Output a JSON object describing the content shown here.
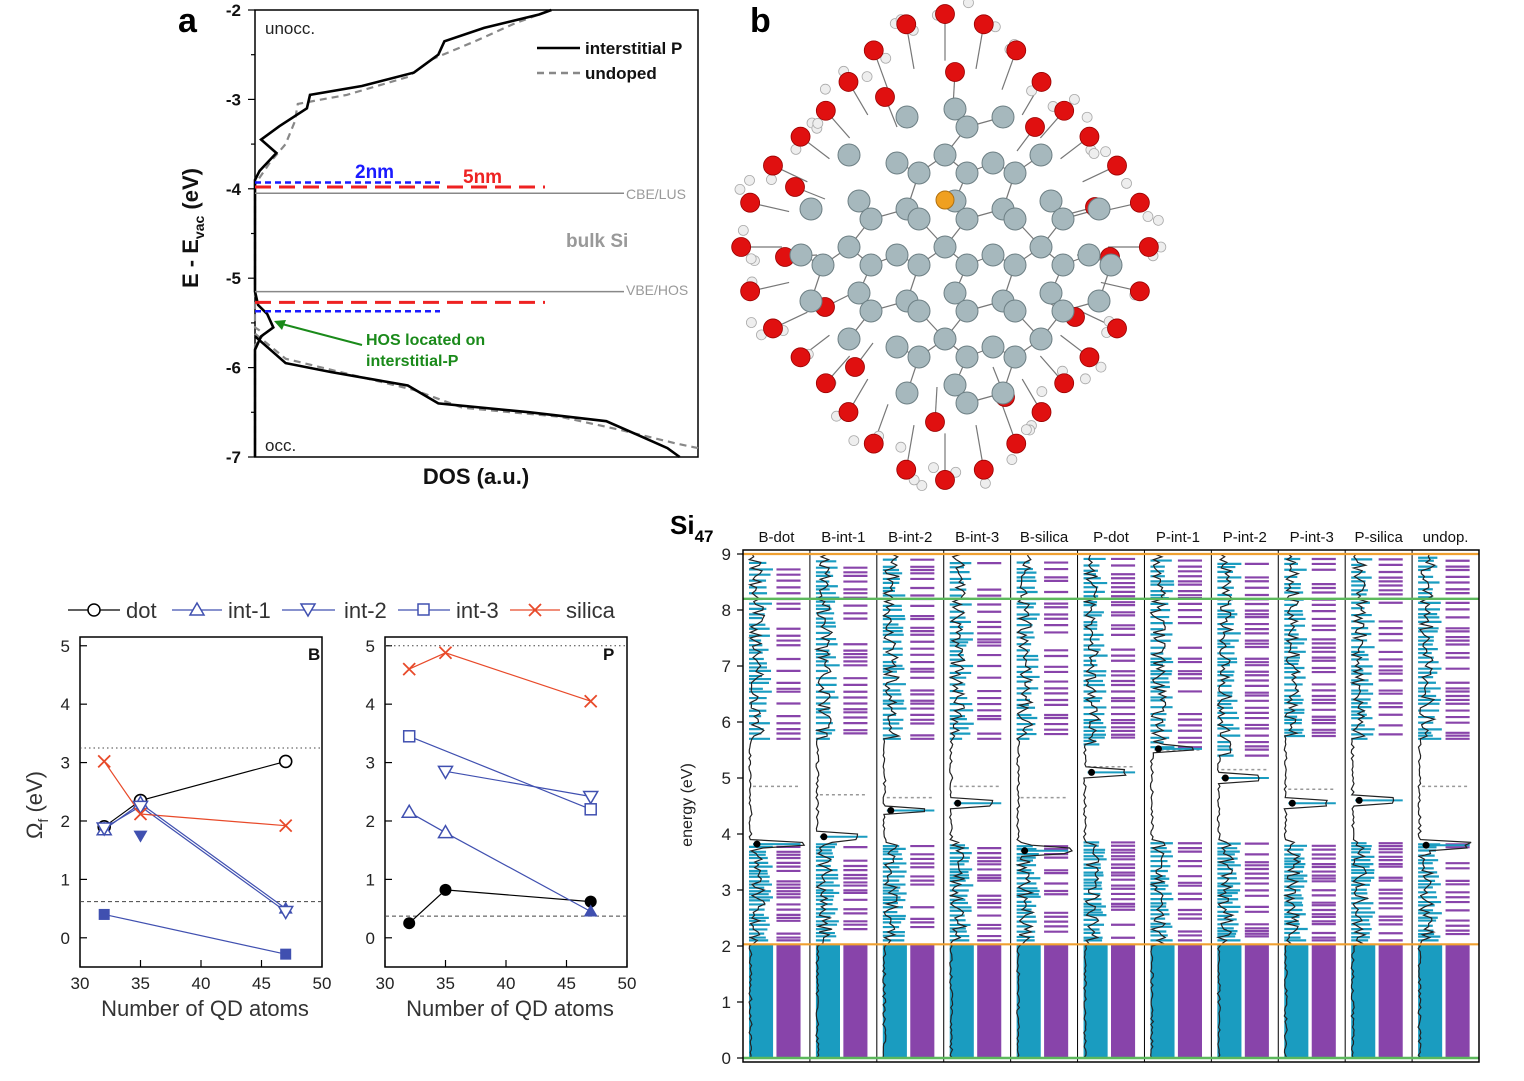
{
  "panel_a": {
    "letter": "a",
    "regions": {
      "unocc": "unocc.",
      "occ": "occ."
    },
    "legend": {
      "interstitial": "interstitial P",
      "undoped": "undoped"
    },
    "levels": {
      "cbe_label": "CBE/LUS",
      "vbe_label": "VBE/HOS",
      "bulk_label": "bulk Si",
      "label_2nm": "2nm",
      "label_5nm": "5nm",
      "cbe": -4.05,
      "vbe": -5.15,
      "nm2_upper": -3.93,
      "nm5_upper": -3.98,
      "nm5_lower": -5.27,
      "nm2_lower": -5.37
    },
    "annotation_line1": "HOS located on",
    "annotation_line2": "interstitial-P",
    "colors": {
      "blue": "#1a1aff",
      "red": "#ee2222",
      "green": "#1a8a1a",
      "gray": "#888888"
    }
  },
  "panel_b": {
    "letter": "b"
  },
  "panel_c": {
    "legend": {
      "dot": "dot",
      "int1": "int-1",
      "int2": "int-2",
      "int3": "int-3",
      "silica": "silica"
    },
    "ylabel": "Ω",
    "ylabel_sub": "f",
    "ylabel_unit": " (eV)",
    "xlabel": "Number of QD atoms",
    "panel_B_tag": "B",
    "panel_P_tag": "P",
    "colors": {
      "dot": "#000000",
      "blue": "#4050b0",
      "silica": "#e84a2a"
    }
  },
  "panel_d": {
    "title_main": "Si",
    "title_sub": "47",
    "ylabel": "energy (eV)",
    "columns": [
      "B-dot",
      "B-int-1",
      "B-int-2",
      "B-int-3",
      "B-silica",
      "P-dot",
      "P-int-1",
      "P-int-2",
      "P-int-3",
      "P-silica",
      "undop."
    ],
    "colors": {
      "cyan": "#1a9cc0",
      "purple": "#8844aa",
      "orange": "#f0a030",
      "green": "#5cb85c"
    }
  },
  "chart_data": [
    {
      "type": "line",
      "title": "a",
      "xlabel": "DOS (a.u.)",
      "ylabel": "E - E",
      "ylabel_sub": "vac",
      "ylabel_unit": " (eV)",
      "ylim": [
        -7,
        -2
      ],
      "yticks": [
        "-2",
        "-3",
        "-4",
        "-5",
        "-6",
        "-7"
      ],
      "series": [
        {
          "name": "interstitial P",
          "points": [
            [
              0.0,
              -7.0
            ],
            [
              0.0,
              -5.8
            ],
            [
              0.02,
              -5.65
            ],
            [
              0.06,
              -5.55
            ],
            [
              0.04,
              -5.4
            ],
            [
              0.01,
              -5.3
            ],
            [
              0.0,
              -5.15
            ],
            [
              0.0,
              -3.9
            ],
            [
              0.015,
              -3.8
            ],
            [
              0.07,
              -3.6
            ],
            [
              0.02,
              -3.45
            ],
            [
              0.08,
              -3.3
            ],
            [
              0.17,
              -3.1
            ],
            [
              0.18,
              -2.95
            ],
            [
              0.35,
              -2.85
            ],
            [
              0.52,
              -2.7
            ],
            [
              0.6,
              -2.5
            ],
            [
              0.62,
              -2.35
            ],
            [
              0.75,
              -2.2
            ],
            [
              0.93,
              -2.05
            ],
            [
              0.97,
              -2.0
            ]
          ]
        },
        {
          "name": "undoped",
          "points": [
            [
              0.0,
              -7.0
            ],
            [
              0.0,
              -5.75
            ],
            [
              0.03,
              -5.62
            ],
            [
              0.0,
              -5.55
            ],
            [
              0.0,
              -3.95
            ],
            [
              0.05,
              -3.7
            ],
            [
              0.1,
              -3.5
            ],
            [
              0.13,
              -3.25
            ],
            [
              0.14,
              -3.05
            ],
            [
              0.3,
              -2.95
            ],
            [
              0.5,
              -2.75
            ],
            [
              0.58,
              -2.55
            ],
            [
              0.72,
              -2.35
            ],
            [
              0.85,
              -2.15
            ],
            [
              0.97,
              -2.0
            ]
          ]
        }
      ],
      "occ_series": [
        {
          "name": "interstitial P",
          "points": [
            [
              0.0,
              -5.65
            ],
            [
              0.1,
              -5.95
            ],
            [
              0.25,
              -6.05
            ],
            [
              0.5,
              -6.2
            ],
            [
              0.6,
              -6.4
            ],
            [
              0.9,
              -6.5
            ],
            [
              1.15,
              -6.6
            ],
            [
              1.25,
              -6.75
            ],
            [
              1.35,
              -6.9
            ],
            [
              1.39,
              -7.0
            ]
          ]
        },
        {
          "name": "undoped",
          "points": [
            [
              0.0,
              -5.62
            ],
            [
              0.1,
              -5.9
            ],
            [
              0.28,
              -6.05
            ],
            [
              0.52,
              -6.25
            ],
            [
              0.68,
              -6.45
            ],
            [
              1.0,
              -6.55
            ],
            [
              1.2,
              -6.7
            ],
            [
              1.38,
              -6.85
            ],
            [
              1.45,
              -6.9
            ]
          ]
        }
      ]
    },
    {
      "type": "line",
      "title": "B",
      "xlabel": "Number of QD atoms",
      "ylabel": "Ωf (eV)",
      "xlim": [
        30,
        50
      ],
      "ylim": [
        -0.5,
        5
      ],
      "xticks": [
        "30",
        "35",
        "40",
        "45",
        "50"
      ],
      "yticks": [
        "0",
        "1",
        "2",
        "3",
        "4",
        "5"
      ],
      "hlines": [
        3.25,
        0.62
      ],
      "series": [
        {
          "name": "dot",
          "marker": "circle-open",
          "color": "#000000",
          "x": [
            32,
            35,
            47
          ],
          "y": [
            1.9,
            2.35,
            3.02
          ]
        },
        {
          "name": "int-1",
          "marker": "tri-up-open",
          "color": "#4050b0",
          "x": [
            32,
            35
          ],
          "y": [
            1.85,
            2.3
          ]
        },
        {
          "name": "int-1 (filled)",
          "marker": "tri-up-filled",
          "color": "#4050b0",
          "x": [
            47
          ],
          "y": [
            0.5
          ]
        },
        {
          "name": "int-2",
          "marker": "tri-down-open",
          "color": "#4050b0",
          "x": [
            32,
            35,
            47
          ],
          "y": [
            1.88,
            2.25,
            0.45
          ]
        },
        {
          "name": "int-2 (filled)",
          "marker": "tri-down-filled",
          "color": "#4050b0",
          "x": [
            35
          ],
          "y": [
            1.75
          ]
        },
        {
          "name": "int-3",
          "marker": "square-filled",
          "color": "#4050b0",
          "x": [
            32,
            47
          ],
          "y": [
            0.4,
            -0.28
          ]
        },
        {
          "name": "silica",
          "marker": "x",
          "color": "#e84a2a",
          "x": [
            32,
            35,
            47
          ],
          "y": [
            3.02,
            2.12,
            1.92
          ]
        }
      ]
    },
    {
      "type": "line",
      "title": "P",
      "xlabel": "Number of QD atoms",
      "ylabel": "Ωf (eV)",
      "xlim": [
        30,
        50
      ],
      "ylim": [
        -0.5,
        5
      ],
      "xticks": [
        "30",
        "35",
        "40",
        "45",
        "50"
      ],
      "yticks": [
        "0",
        "1",
        "2",
        "3",
        "4",
        "5"
      ],
      "hlines": [
        5.0,
        0.37
      ],
      "series": [
        {
          "name": "dot",
          "marker": "circle-filled",
          "color": "#000000",
          "x": [
            32,
            35,
            47
          ],
          "y": [
            0.25,
            0.82,
            0.62
          ]
        },
        {
          "name": "int-1",
          "marker": "tri-up-open",
          "color": "#4050b0",
          "x": [
            32,
            35
          ],
          "y": [
            2.15,
            1.8
          ]
        },
        {
          "name": "int-1 (filled)",
          "marker": "tri-up-filled",
          "color": "#4050b0",
          "x": [
            47
          ],
          "y": [
            0.45
          ]
        },
        {
          "name": "int-2",
          "marker": "tri-down-open",
          "color": "#4050b0",
          "x": [
            35,
            47
          ],
          "y": [
            2.85,
            2.42
          ]
        },
        {
          "name": "int-3",
          "marker": "square-open",
          "color": "#4050b0",
          "x": [
            32,
            47
          ],
          "y": [
            3.45,
            2.2
          ]
        },
        {
          "name": "silica",
          "marker": "x",
          "color": "#e84a2a",
          "x": [
            32,
            35,
            47
          ],
          "y": [
            4.6,
            4.88,
            4.05
          ]
        }
      ]
    },
    {
      "type": "heatmap",
      "title": "Si47",
      "ylabel": "energy (eV)",
      "ylim": [
        0,
        9
      ],
      "yticks": [
        "0",
        "1",
        "2",
        "3",
        "4",
        "5",
        "6",
        "7",
        "8",
        "9"
      ],
      "hlines": {
        "orange": [
          9.0,
          2.03
        ],
        "green": [
          8.2,
          0.0
        ]
      },
      "categories": [
        "B-dot",
        "B-int-1",
        "B-int-2",
        "B-int-3",
        "B-silica",
        "P-dot",
        "P-int-1",
        "P-int-2",
        "P-int-3",
        "P-silica",
        "undop."
      ],
      "dot_energies": [
        3.82,
        3.95,
        4.42,
        4.55,
        3.7,
        5.1,
        5.52,
        5.0,
        4.55,
        4.6,
        3.8
      ],
      "dotted_levels": [
        4.85,
        4.7,
        4.65,
        4.85,
        4.65,
        5.2,
        5.5,
        5.15,
        4.8,
        4.6,
        4.85
      ],
      "gap_bottom": 3.85,
      "gap_top_unocc": [
        5.7,
        5.7,
        5.7,
        5.7,
        5.7,
        5.6,
        5.55,
        5.4,
        5.75,
        5.7,
        5.7
      ]
    }
  ]
}
